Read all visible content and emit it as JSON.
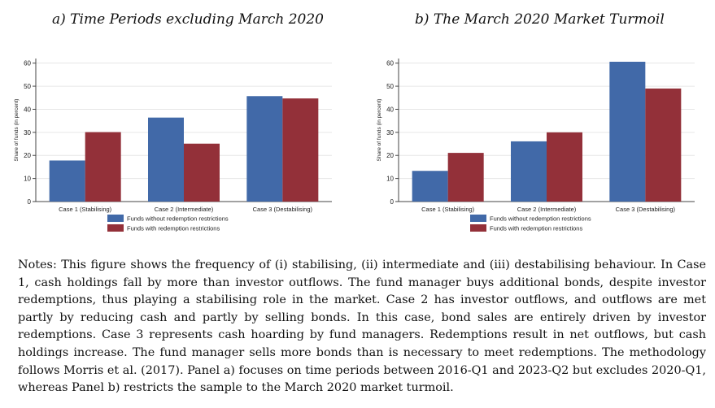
{
  "panels": {
    "a_title": "a)  Time Periods excluding March 2020",
    "b_title": "b)  The March 2020 Market Turmoil"
  },
  "chart_data": [
    {
      "type": "bar",
      "title": "a)  Time Periods excluding March 2020",
      "ylabel": "Share of funds (in percent)",
      "xlabel": "",
      "categories": [
        "Case 1 (Stabilising)",
        "Case 2 (Intermediate)",
        "Case 3 (Destabilising)"
      ],
      "ylim": [
        0,
        62
      ],
      "yticks": [
        0,
        10,
        20,
        30,
        40,
        50,
        60
      ],
      "grid": true,
      "legend": "bottom",
      "series": [
        {
          "name": "Funds without redemption restrictions",
          "color": "#4169a8",
          "values": [
            17.8,
            36.4,
            45.7
          ]
        },
        {
          "name": "Funds with redemption restrictions",
          "color": "#933039",
          "values": [
            30.1,
            25.1,
            44.7
          ]
        }
      ]
    },
    {
      "type": "bar",
      "title": "b)  The March 2020 Market Turmoil",
      "ylabel": "Share of funds (in percent)",
      "xlabel": "",
      "categories": [
        "Case 1 (Stabilising)",
        "Case 2 (Intermediate)",
        "Case 3 (Destabilising)"
      ],
      "ylim": [
        0,
        62
      ],
      "yticks": [
        0,
        10,
        20,
        30,
        40,
        50,
        60
      ],
      "grid": true,
      "legend": "bottom",
      "series": [
        {
          "name": "Funds without redemption restrictions",
          "color": "#4169a8",
          "values": [
            13.3,
            26.1,
            60.6
          ]
        },
        {
          "name": "Funds with redemption restrictions",
          "color": "#933039",
          "values": [
            21.1,
            30.0,
            49.0
          ]
        }
      ]
    }
  ],
  "notes": "Notes: This figure shows the frequency of (i) stabilising, (ii) intermediate and (iii) destabilising behaviour. In Case 1, cash holdings fall by more than investor outflows. The fund manager buys additional bonds, despite investor redemptions, thus playing a stabilising role in the market. Case 2 has investor outflows, and outflows are met partly by reducing cash and partly by selling bonds. In this case, bond sales are entirely driven by investor redemptions. Case 3 represents cash hoarding by fund managers. Redemptions result in net outflows, but cash holdings increase. The fund manager sells more bonds than is necessary to meet redemptions. The methodology follows Morris et al. (2017). Panel a) focuses on time periods between 2016-Q1 and 2023-Q2 but excludes 2020-Q1, whereas Panel b) restricts the sample to the March 2020 market turmoil."
}
